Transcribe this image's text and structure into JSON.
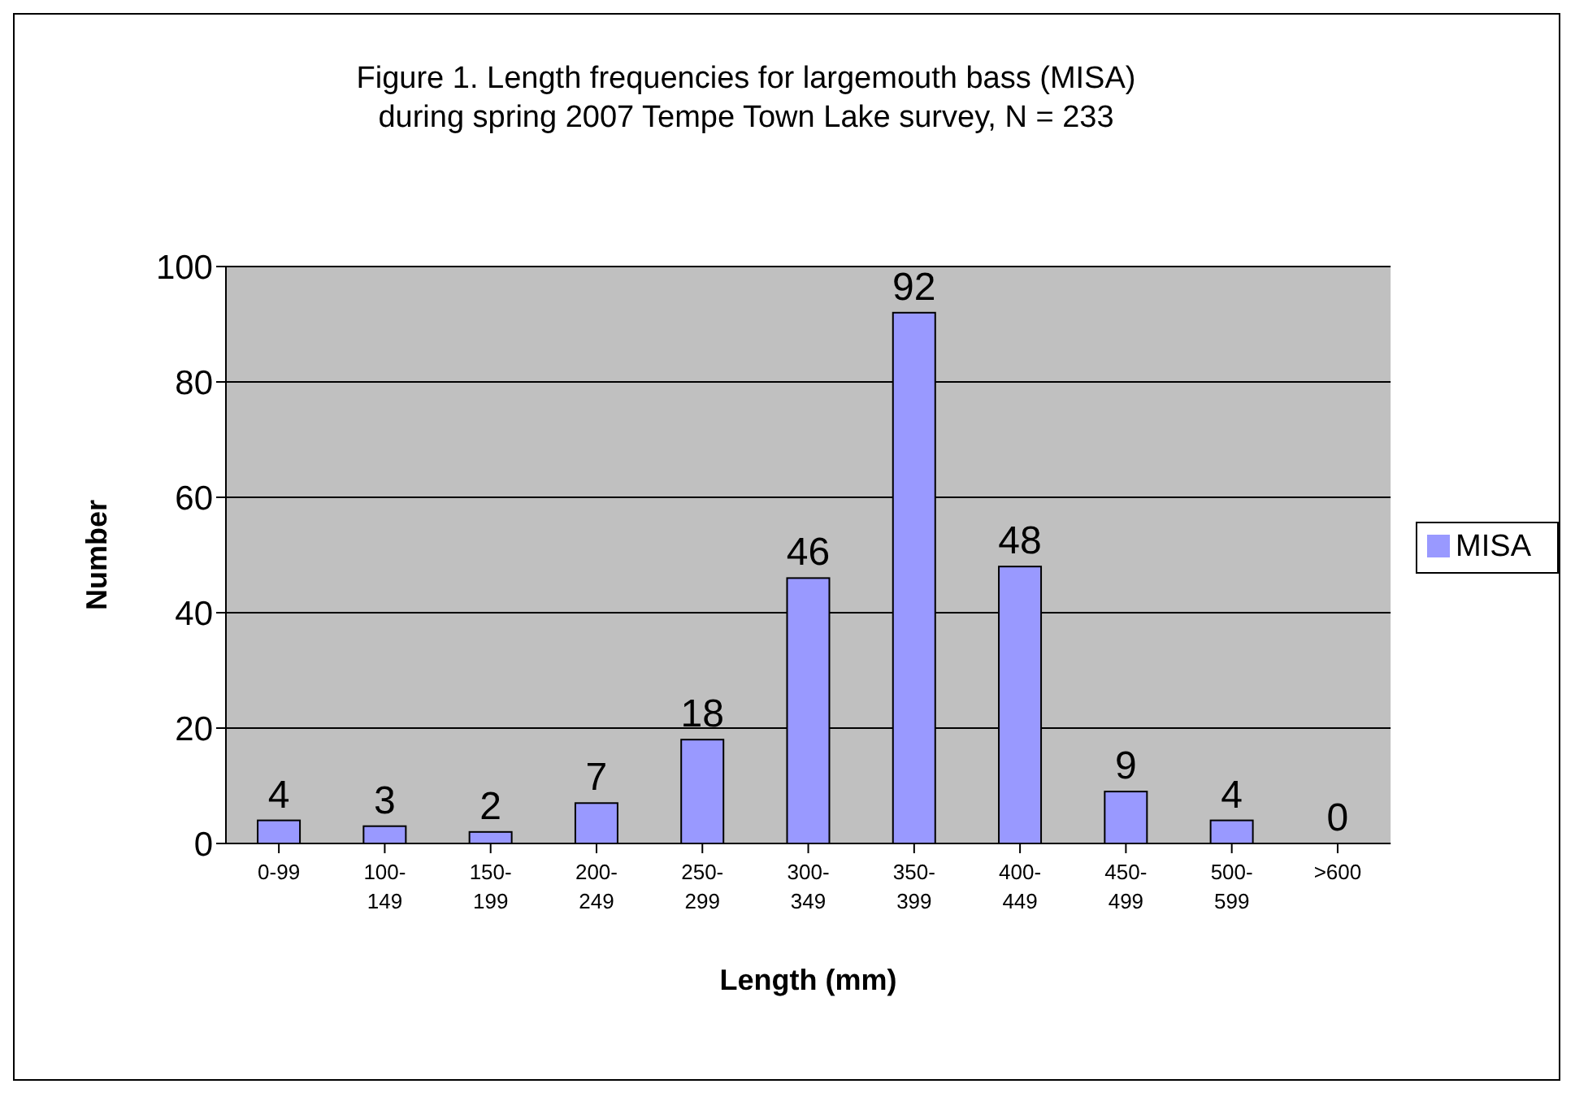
{
  "chart_data": {
    "type": "bar",
    "title": "Figure 1. Length frequencies for largemouth bass (MISA) during spring 2007 Tempe Town Lake survey, N = 233",
    "xlabel": "Length (mm)",
    "ylabel": "Number",
    "categories": [
      "0-99",
      "100-149",
      "150-199",
      "200-249",
      "250-299",
      "300-349",
      "350-399",
      "400-449",
      "450-499",
      "500-599",
      ">600"
    ],
    "series": [
      {
        "name": "MISA",
        "color": "#9999ff",
        "values": [
          4,
          3,
          2,
          7,
          18,
          46,
          92,
          48,
          9,
          4,
          0
        ]
      }
    ],
    "ylim": [
      0,
      100
    ],
    "yticks": [
      0,
      20,
      40,
      60,
      80,
      100
    ],
    "grid": "y",
    "legend": "right",
    "data_labels": true
  }
}
